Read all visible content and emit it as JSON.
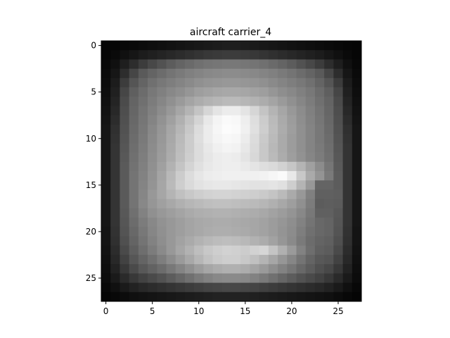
{
  "chart_data": {
    "type": "heatmap",
    "title": "aircraft carrier_4",
    "xlabel": "",
    "ylabel": "",
    "colormap": "gray",
    "grid": false,
    "rows": 28,
    "cols": 28,
    "xlim": [
      -0.5,
      27.5
    ],
    "ylim": [
      27.5,
      -0.5
    ],
    "xticks": [
      0,
      5,
      10,
      15,
      20,
      25
    ],
    "yticks": [
      0,
      5,
      10,
      15,
      20,
      25
    ],
    "value_range": [
      0,
      255
    ],
    "values": [
      [
        5,
        6,
        8,
        10,
        12,
        14,
        16,
        18,
        20,
        22,
        24,
        26,
        28,
        30,
        30,
        28,
        26,
        24,
        22,
        20,
        18,
        16,
        14,
        12,
        10,
        8,
        6,
        5
      ],
      [
        6,
        10,
        16,
        22,
        28,
        32,
        36,
        40,
        44,
        48,
        52,
        56,
        58,
        60,
        60,
        58,
        56,
        52,
        48,
        44,
        40,
        36,
        32,
        28,
        22,
        16,
        10,
        6
      ],
      [
        8,
        16,
        30,
        45,
        60,
        72,
        82,
        92,
        100,
        106,
        112,
        116,
        118,
        120,
        120,
        118,
        116,
        112,
        106,
        100,
        92,
        82,
        72,
        60,
        45,
        30,
        16,
        8
      ],
      [
        10,
        22,
        45,
        70,
        90,
        100,
        108,
        116,
        122,
        128,
        132,
        136,
        138,
        140,
        140,
        138,
        136,
        132,
        128,
        122,
        116,
        108,
        100,
        90,
        70,
        45,
        22,
        10
      ],
      [
        12,
        28,
        60,
        85,
        100,
        112,
        120,
        126,
        132,
        138,
        144,
        148,
        150,
        152,
        152,
        150,
        148,
        144,
        138,
        132,
        126,
        120,
        112,
        100,
        85,
        60,
        28,
        12
      ],
      [
        14,
        32,
        70,
        95,
        108,
        120,
        128,
        136,
        142,
        150,
        158,
        162,
        166,
        168,
        168,
        166,
        162,
        158,
        150,
        142,
        136,
        128,
        120,
        108,
        95,
        70,
        32,
        14
      ],
      [
        16,
        36,
        75,
        100,
        112,
        124,
        134,
        144,
        154,
        164,
        172,
        178,
        182,
        186,
        186,
        182,
        178,
        172,
        164,
        154,
        144,
        134,
        124,
        112,
        100,
        75,
        36,
        16
      ],
      [
        18,
        40,
        78,
        102,
        116,
        128,
        140,
        152,
        166,
        180,
        196,
        214,
        228,
        236,
        236,
        228,
        214,
        196,
        180,
        166,
        152,
        140,
        128,
        116,
        102,
        78,
        40,
        18
      ],
      [
        20,
        44,
        80,
        104,
        118,
        132,
        146,
        160,
        176,
        194,
        212,
        232,
        244,
        250,
        248,
        238,
        222,
        204,
        186,
        170,
        156,
        142,
        130,
        118,
        104,
        80,
        44,
        20
      ],
      [
        22,
        48,
        82,
        106,
        120,
        136,
        150,
        166,
        182,
        200,
        220,
        236,
        246,
        252,
        250,
        240,
        224,
        206,
        188,
        172,
        158,
        144,
        132,
        120,
        106,
        82,
        48,
        22
      ],
      [
        22,
        50,
        84,
        108,
        122,
        138,
        152,
        168,
        186,
        204,
        222,
        236,
        244,
        248,
        246,
        236,
        220,
        202,
        186,
        170,
        156,
        144,
        132,
        120,
        108,
        84,
        50,
        22
      ],
      [
        22,
        52,
        86,
        110,
        124,
        140,
        154,
        170,
        188,
        204,
        220,
        232,
        240,
        244,
        242,
        232,
        218,
        200,
        184,
        170,
        156,
        144,
        132,
        122,
        110,
        86,
        52,
        22
      ],
      [
        22,
        52,
        88,
        112,
        126,
        142,
        156,
        172,
        190,
        206,
        220,
        230,
        236,
        238,
        236,
        228,
        216,
        200,
        186,
        172,
        158,
        146,
        134,
        124,
        112,
        88,
        52,
        22
      ],
      [
        22,
        52,
        90,
        114,
        128,
        144,
        160,
        178,
        196,
        212,
        224,
        232,
        236,
        238,
        238,
        234,
        228,
        222,
        218,
        210,
        198,
        180,
        160,
        140,
        118,
        90,
        52,
        22
      ],
      [
        22,
        52,
        90,
        116,
        130,
        146,
        164,
        184,
        204,
        220,
        230,
        236,
        238,
        240,
        240,
        240,
        240,
        242,
        246,
        250,
        232,
        200,
        170,
        148,
        122,
        92,
        52,
        22
      ],
      [
        22,
        52,
        90,
        116,
        132,
        148,
        166,
        186,
        206,
        218,
        226,
        230,
        232,
        232,
        230,
        228,
        226,
        226,
        228,
        224,
        206,
        180,
        152,
        100,
        100,
        92,
        52,
        22
      ],
      [
        22,
        52,
        90,
        116,
        134,
        152,
        166,
        180,
        192,
        200,
        206,
        210,
        212,
        212,
        210,
        208,
        206,
        202,
        196,
        186,
        170,
        152,
        128,
        96,
        96,
        94,
        52,
        22
      ],
      [
        22,
        52,
        90,
        116,
        136,
        150,
        160,
        168,
        176,
        182,
        186,
        190,
        192,
        192,
        190,
        188,
        186,
        182,
        176,
        168,
        158,
        144,
        124,
        92,
        94,
        92,
        52,
        22
      ],
      [
        22,
        52,
        88,
        112,
        130,
        144,
        152,
        158,
        164,
        170,
        174,
        176,
        178,
        178,
        176,
        174,
        172,
        168,
        162,
        156,
        148,
        136,
        120,
        96,
        96,
        88,
        52,
        22
      ],
      [
        22,
        52,
        86,
        108,
        124,
        136,
        146,
        152,
        158,
        164,
        168,
        170,
        172,
        172,
        170,
        168,
        166,
        162,
        156,
        150,
        142,
        130,
        116,
        104,
        100,
        86,
        52,
        22
      ],
      [
        20,
        50,
        84,
        104,
        120,
        134,
        144,
        152,
        158,
        164,
        168,
        172,
        174,
        174,
        172,
        170,
        166,
        162,
        156,
        148,
        140,
        126,
        112,
        104,
        100,
        84,
        50,
        20
      ],
      [
        20,
        48,
        80,
        100,
        116,
        130,
        142,
        152,
        162,
        170,
        178,
        184,
        188,
        190,
        188,
        184,
        178,
        172,
        162,
        150,
        138,
        122,
        108,
        100,
        96,
        80,
        48,
        20
      ],
      [
        18,
        44,
        74,
        94,
        110,
        124,
        138,
        152,
        166,
        178,
        190,
        200,
        206,
        210,
        208,
        204,
        210,
        214,
        196,
        176,
        154,
        130,
        110,
        96,
        92,
        74,
        44,
        18
      ],
      [
        16,
        40,
        66,
        86,
        100,
        112,
        126,
        140,
        154,
        168,
        182,
        194,
        202,
        206,
        206,
        200,
        192,
        180,
        166,
        150,
        134,
        116,
        100,
        88,
        84,
        66,
        40,
        16
      ],
      [
        14,
        34,
        56,
        74,
        88,
        98,
        108,
        120,
        132,
        144,
        156,
        166,
        172,
        176,
        176,
        172,
        164,
        154,
        142,
        130,
        118,
        104,
        92,
        80,
        72,
        56,
        34,
        14
      ],
      [
        12,
        26,
        42,
        56,
        66,
        74,
        82,
        92,
        102,
        112,
        122,
        130,
        136,
        138,
        138,
        136,
        130,
        122,
        112,
        102,
        92,
        82,
        74,
        66,
        56,
        42,
        26,
        12
      ],
      [
        8,
        16,
        26,
        34,
        40,
        44,
        48,
        52,
        56,
        60,
        64,
        68,
        70,
        72,
        72,
        70,
        68,
        64,
        60,
        56,
        52,
        48,
        44,
        40,
        34,
        26,
        16,
        8
      ],
      [
        5,
        8,
        12,
        16,
        18,
        20,
        22,
        24,
        26,
        28,
        30,
        32,
        34,
        34,
        34,
        34,
        32,
        30,
        28,
        26,
        24,
        22,
        20,
        18,
        16,
        12,
        8,
        5
      ]
    ]
  }
}
